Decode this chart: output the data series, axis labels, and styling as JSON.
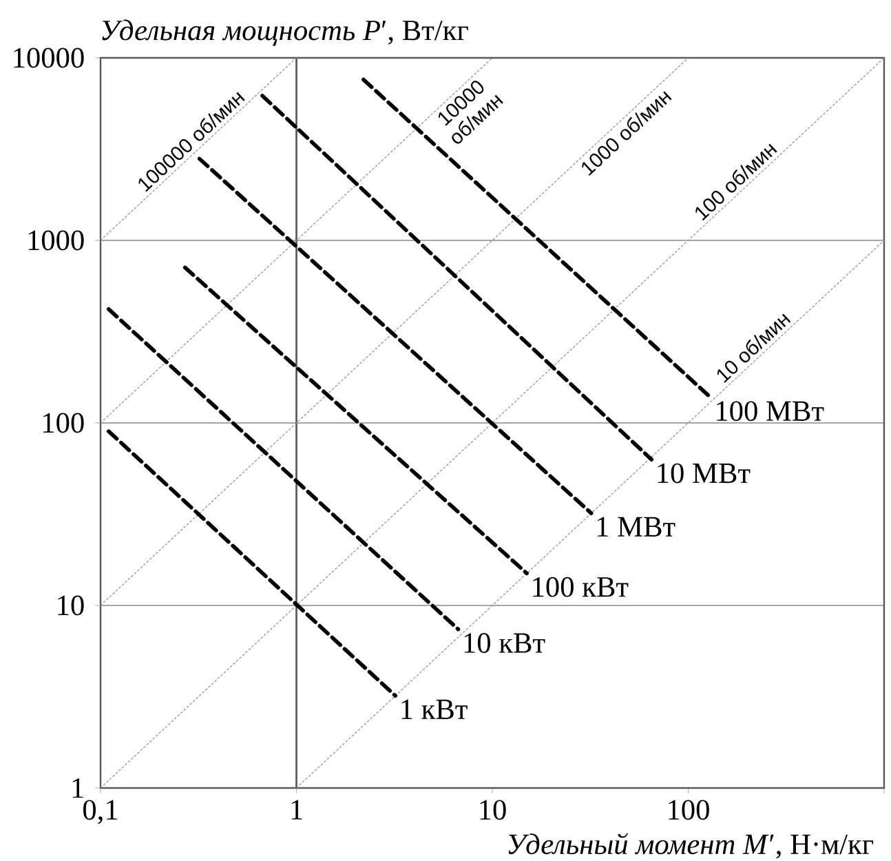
{
  "chart_data": {
    "type": "line",
    "xlabel": "*Удельный момент M*′, Н·м/кг",
    "ylabel": "*Удельная мощность P*′, Вт/кг",
    "log": "xy",
    "grid": "y",
    "marker": "none",
    "xlim": [
      0.1,
      1000
    ],
    "ylim": [
      1,
      10000
    ],
    "xticks": [
      {
        "value": 0.1,
        "label": "0,1"
      },
      1,
      10,
      100,
      {
        "value": 1000,
        "label": null
      }
    ],
    "yticks": [
      1,
      10,
      100,
      1000,
      10000
    ],
    "ref_lines": [
      {
        "axis": "x",
        "value": 1,
        "color": "#555555"
      }
    ],
    "series": [
      {
        "name": "100000 об/мин",
        "color": "#999999",
        "line_style": "dotted",
        "x": [
          0.1,
          1
        ],
        "values": [
          1000,
          10000
        ]
      },
      {
        "name": "10000 об/мин",
        "color": "#999999",
        "line_style": "dotted",
        "x": [
          0.1,
          10
        ],
        "values": [
          100,
          10000
        ]
      },
      {
        "name": "1000 об/мин",
        "color": "#999999",
        "line_style": "dotted",
        "x": [
          0.1,
          100
        ],
        "values": [
          10,
          10000
        ]
      },
      {
        "name": "100 об/мин",
        "color": "#999999",
        "line_style": "dotted",
        "x": [
          0.1,
          1000
        ],
        "values": [
          1,
          10000
        ]
      },
      {
        "name": "10 об/мин",
        "color": "#999999",
        "line_style": "dotted",
        "x": [
          1,
          1000
        ],
        "values": [
          1,
          1000
        ]
      },
      {
        "name": "1 кВт",
        "color": "#000000",
        "line_style": "dashed",
        "x": [
          0.11,
          3.2
        ],
        "values": [
          90,
          3.2
        ]
      },
      {
        "name": "10 кВт",
        "color": "#000000",
        "line_style": "dashed",
        "x": [
          0.11,
          6.7
        ],
        "values": [
          420,
          7.4
        ]
      },
      {
        "name": "100 кВт",
        "color": "#000000",
        "line_style": "dashed",
        "x": [
          0.27,
          15
        ],
        "values": [
          710,
          15
        ]
      },
      {
        "name": "1 МВт",
        "color": "#000000",
        "line_style": "dashed",
        "x": [
          0.32,
          32
        ],
        "values": [
          2800,
          32
        ]
      },
      {
        "name": "10 МВт",
        "color": "#000000",
        "line_style": "dashed",
        "x": [
          0.67,
          65
        ],
        "values": [
          6200,
          63
        ]
      },
      {
        "name": "100 МВт",
        "color": "#000000",
        "line_style": "dashed",
        "x": [
          2.2,
          130
        ],
        "values": [
          7600,
          138
        ]
      }
    ]
  }
}
